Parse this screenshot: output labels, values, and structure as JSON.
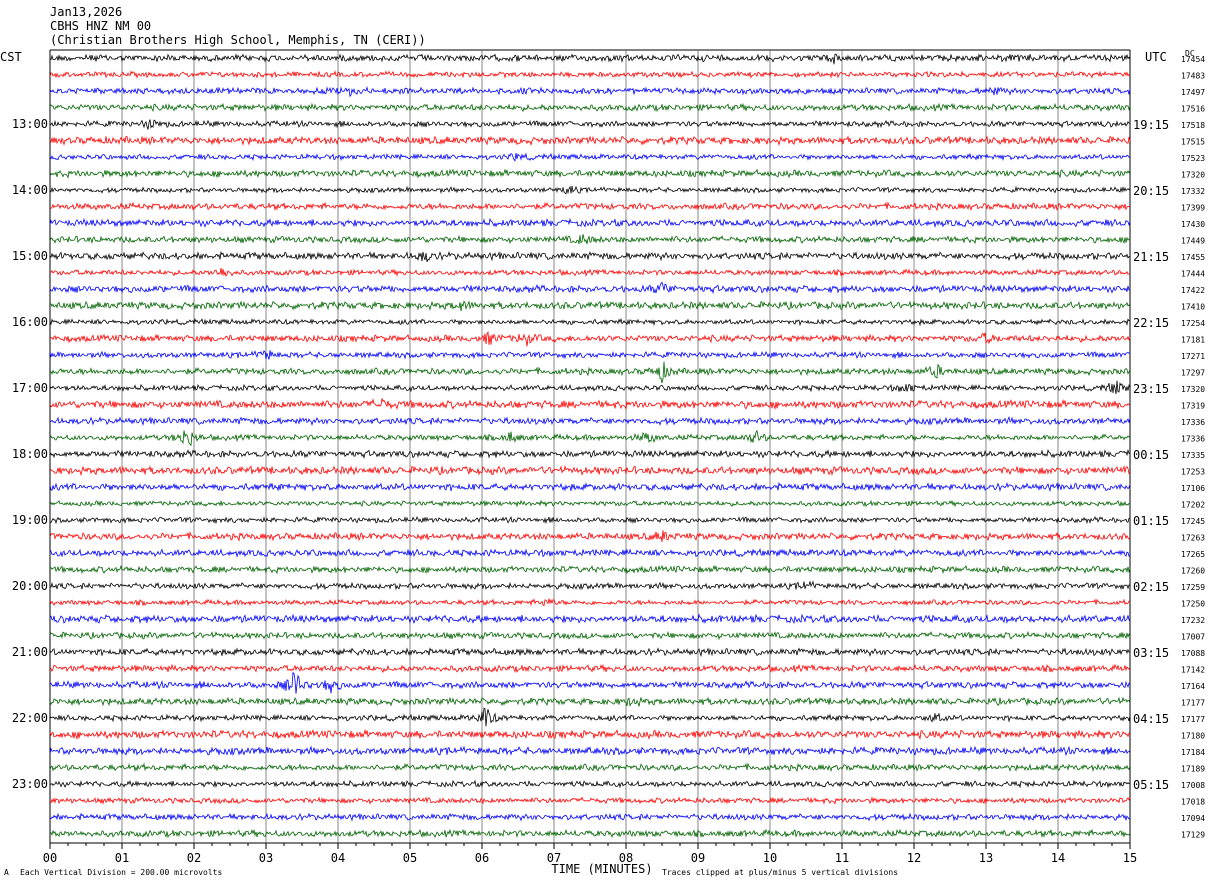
{
  "header": {
    "date": "Jan13,2026",
    "station": "CBHS HNZ NM 00",
    "location": "(Christian Brothers High School, Memphis, TN (CERI))"
  },
  "labels": {
    "left_tz": "CST",
    "right_tz": "UTC",
    "dc_label": "DC",
    "x_axis_title": "TIME (MINUTES)"
  },
  "footer": {
    "scale_note": "Each Vertical Division =  200.00 microvolts",
    "clip_note": "Traces clipped at plus/minus 5 vertical divisions",
    "corner_mark": "A"
  },
  "colors": {
    "trace_cycle": [
      "#000000",
      "#ff0000",
      "#0000ff",
      "#006400"
    ],
    "grid": "#000000"
  },
  "chart_data": {
    "type": "line",
    "description_of_layout": "helicorder",
    "x_ticks": [
      "00",
      "01",
      "02",
      "03",
      "04",
      "05",
      "06",
      "07",
      "08",
      "09",
      "10",
      "11",
      "12",
      "13",
      "14",
      "15"
    ],
    "xlim": [
      0,
      15
    ],
    "left_hour_labels": [
      {
        "row": 4,
        "label": "13:00"
      },
      {
        "row": 8,
        "label": "14:00"
      },
      {
        "row": 12,
        "label": "15:00"
      },
      {
        "row": 16,
        "label": "16:00"
      },
      {
        "row": 20,
        "label": "17:00"
      },
      {
        "row": 24,
        "label": "18:00"
      },
      {
        "row": 28,
        "label": "19:00"
      },
      {
        "row": 32,
        "label": "20:00"
      },
      {
        "row": 36,
        "label": "21:00"
      },
      {
        "row": 40,
        "label": "22:00"
      },
      {
        "row": 44,
        "label": "23:00"
      }
    ],
    "right_hour_labels": [
      {
        "row": 4,
        "label": "19:15"
      },
      {
        "row": 8,
        "label": "20:15"
      },
      {
        "row": 12,
        "label": "21:15"
      },
      {
        "row": 16,
        "label": "22:15"
      },
      {
        "row": 20,
        "label": "23:15"
      },
      {
        "row": 24,
        "label": "00:15"
      },
      {
        "row": 28,
        "label": "01:15"
      },
      {
        "row": 32,
        "label": "02:15"
      },
      {
        "row": 36,
        "label": "03:15"
      },
      {
        "row": 40,
        "label": "04:15"
      },
      {
        "row": 44,
        "label": "05:15"
      }
    ],
    "dc_offsets": [
      "17454",
      "17483",
      "17497",
      "17516",
      "17518",
      "17515",
      "17523",
      "17320",
      "17332",
      "17399",
      "17430",
      "17449",
      "17455",
      "17444",
      "17422",
      "17410",
      "17254",
      "17181",
      "17271",
      "17297",
      "17320",
      "17319",
      "17336",
      "17336",
      "17335",
      "17253",
      "17106",
      "17202",
      "17245",
      "17263",
      "17265",
      "17260",
      "17259",
      "17250",
      "17232",
      "17007",
      "17088",
      "17142",
      "17164",
      "17177",
      "17177",
      "17180",
      "17184",
      "17189",
      "17008",
      "17018",
      "17094",
      "17129"
    ],
    "events": [
      {
        "row": 0,
        "minute": 10.9,
        "amp": 0.5
      },
      {
        "row": 2,
        "minute": 4.2,
        "amp": 0.6
      },
      {
        "row": 2,
        "minute": 13.1,
        "amp": 0.5
      },
      {
        "row": 4,
        "minute": 1.4,
        "amp": 0.6
      },
      {
        "row": 6,
        "minute": 6.5,
        "amp": 0.4
      },
      {
        "row": 8,
        "minute": 7.2,
        "amp": 0.5
      },
      {
        "row": 11,
        "minute": 7.4,
        "amp": 0.6
      },
      {
        "row": 12,
        "minute": 5.2,
        "amp": 0.6
      },
      {
        "row": 13,
        "minute": 2.4,
        "amp": 0.7
      },
      {
        "row": 14,
        "minute": 8.5,
        "amp": 0.6
      },
      {
        "row": 15,
        "minute": 5.7,
        "amp": 0.5
      },
      {
        "row": 17,
        "minute": 6.6,
        "amp": 0.8
      },
      {
        "row": 17,
        "minute": 6.1,
        "amp": 0.7
      },
      {
        "row": 17,
        "minute": 13.0,
        "amp": 0.5
      },
      {
        "row": 18,
        "minute": 3.0,
        "amp": 0.7
      },
      {
        "row": 19,
        "minute": 8.5,
        "amp": 1.2
      },
      {
        "row": 19,
        "minute": 12.3,
        "amp": 0.8
      },
      {
        "row": 20,
        "minute": 14.8,
        "amp": 0.9
      },
      {
        "row": 20,
        "minute": 11.9,
        "amp": 0.6
      },
      {
        "row": 21,
        "minute": 4.6,
        "amp": 0.6
      },
      {
        "row": 23,
        "minute": 1.9,
        "amp": 1.5
      },
      {
        "row": 23,
        "minute": 6.4,
        "amp": 0.6
      },
      {
        "row": 23,
        "minute": 8.3,
        "amp": 0.7
      },
      {
        "row": 23,
        "minute": 9.8,
        "amp": 0.8
      },
      {
        "row": 29,
        "minute": 8.5,
        "amp": 0.6
      },
      {
        "row": 32,
        "minute": 10.5,
        "amp": 0.5
      },
      {
        "row": 33,
        "minute": 6.9,
        "amp": 0.5
      },
      {
        "row": 38,
        "minute": 3.4,
        "amp": 1.8
      },
      {
        "row": 38,
        "minute": 3.9,
        "amp": 0.8
      },
      {
        "row": 39,
        "minute": 8.1,
        "amp": 0.5
      },
      {
        "row": 40,
        "minute": 6.05,
        "amp": 1.3
      },
      {
        "row": 40,
        "minute": 12.3,
        "amp": 0.5
      }
    ]
  }
}
